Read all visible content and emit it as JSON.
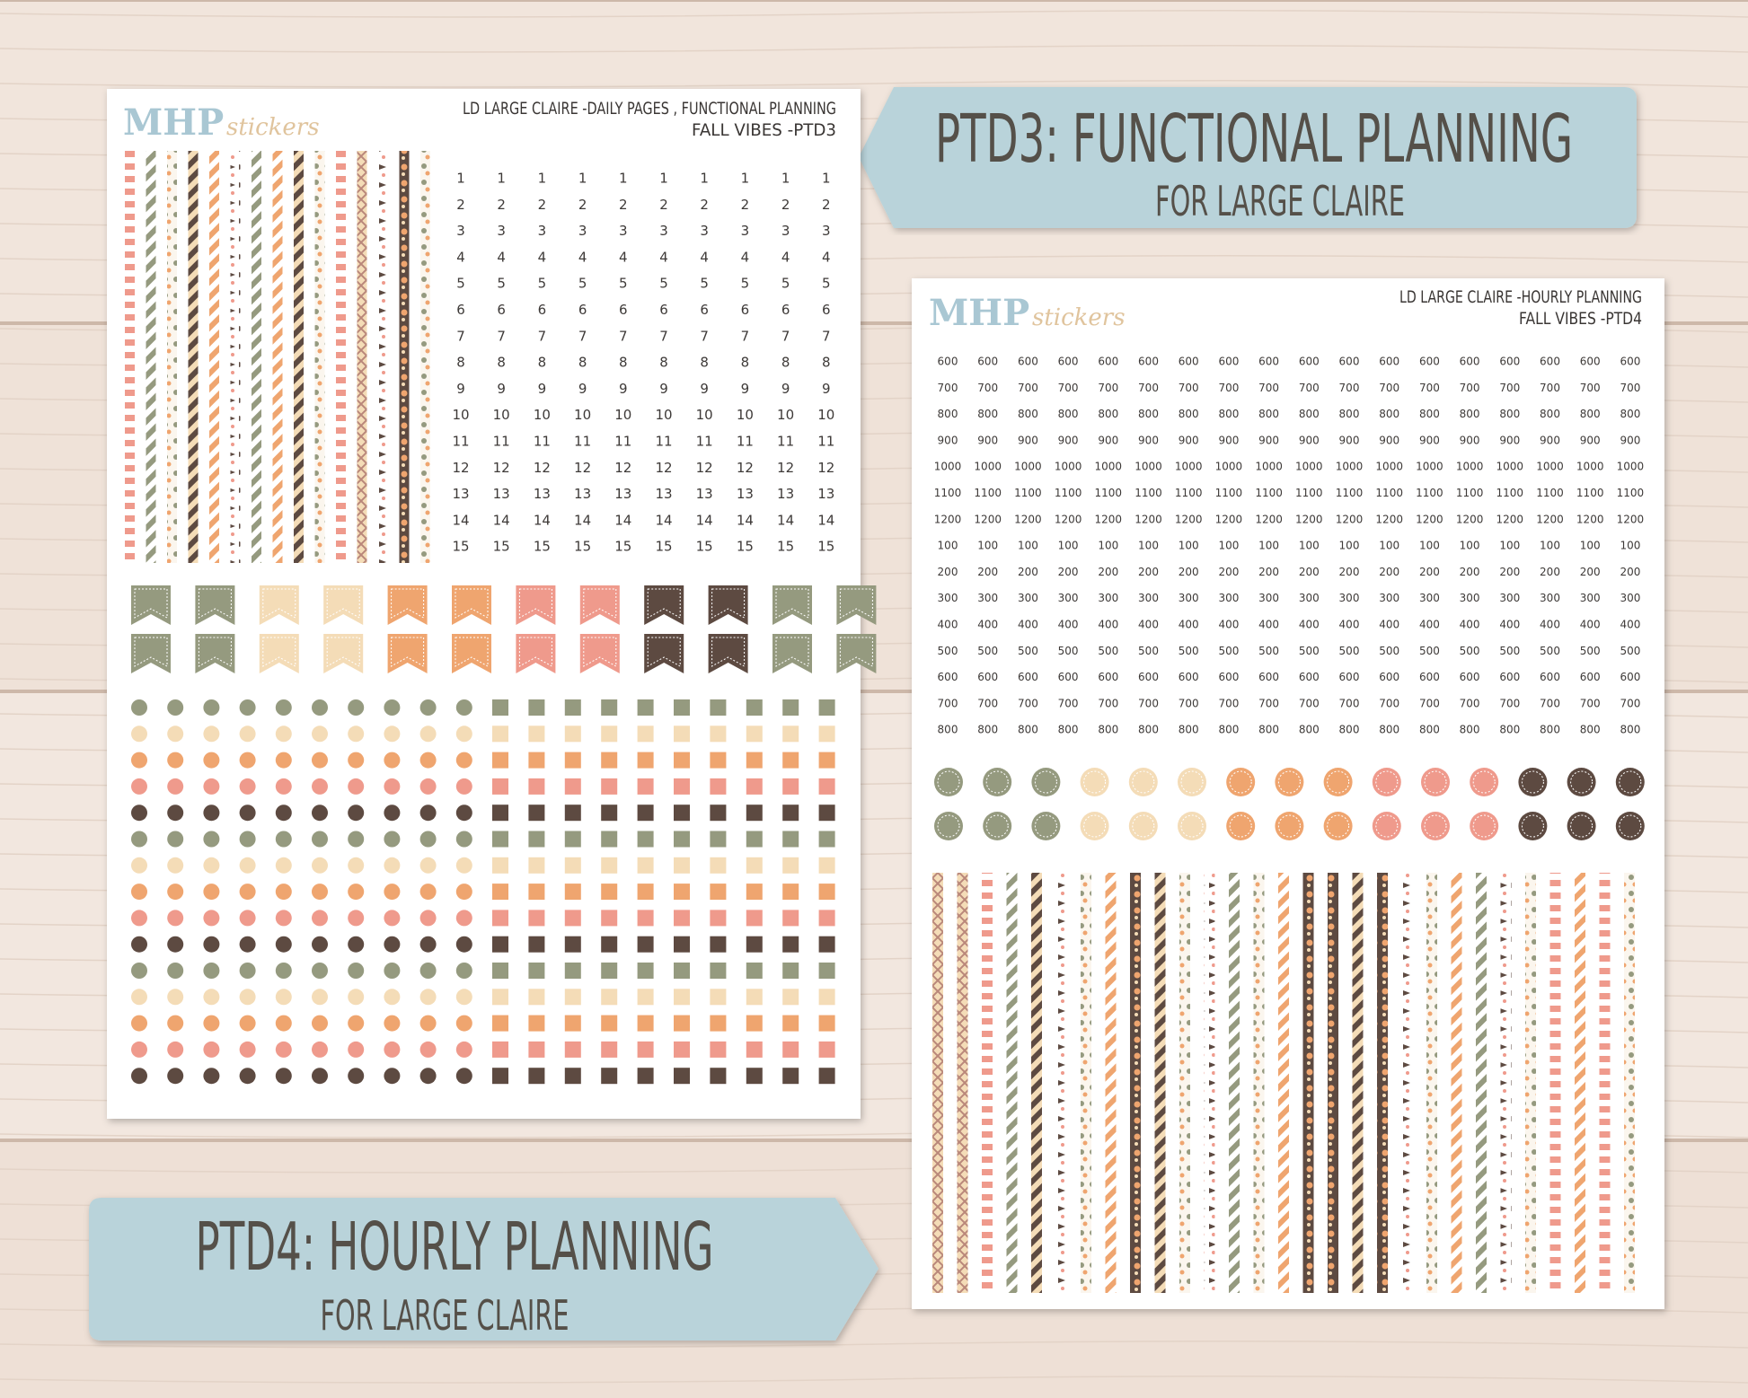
{
  "sheets": [
    {
      "logo": {
        "brand": "MHP",
        "script": "stickers"
      },
      "header": [
        "LD LARGE CLAIRE -DAILY PAGES , FUNCTIONAL PLANNING",
        "FALL VIBES -PTD3"
      ],
      "numbers": [
        "1",
        "2",
        "3",
        "4",
        "5",
        "6",
        "7",
        "8",
        "9",
        "10",
        "11",
        "12",
        "13",
        "14",
        "15"
      ]
    },
    {
      "logo": {
        "brand": "MHP",
        "script": "stickers"
      },
      "header": [
        "LD LARGE CLAIRE -HOURLY PLANNING",
        "FALL VIBES -PTD4"
      ],
      "numbers": [
        "600",
        "700",
        "800",
        "900",
        "1000",
        "1100",
        "1200",
        "100",
        "200",
        "300",
        "400",
        "500",
        "600",
        "700",
        "800"
      ]
    }
  ],
  "banners": [
    {
      "title": "PTD3: FUNCTIONAL PLANNING",
      "subtitle": "FOR LARGE CLAIRE"
    },
    {
      "title": "PTD4: HOURLY PLANNING",
      "subtitle": "FOR LARGE CLAIRE"
    }
  ]
}
